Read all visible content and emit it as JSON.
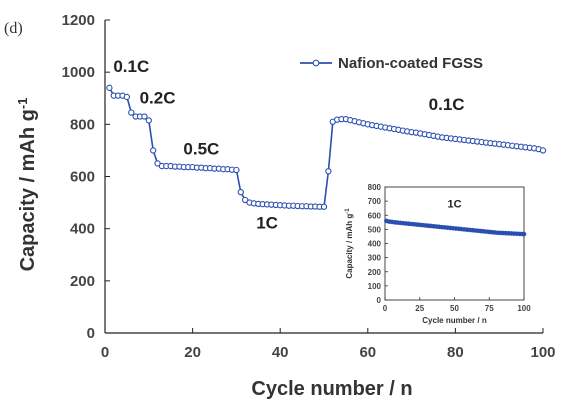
{
  "panel_label": "(d)",
  "chart_data": [
    {
      "type": "line",
      "xlabel": "Cycle number / n",
      "ylabel_main": "Capacity / mAh g",
      "ylabel_sup": "-1",
      "xlim": [
        0,
        100
      ],
      "ylim": [
        0,
        1200
      ],
      "xticks": [
        0,
        20,
        40,
        60,
        80,
        100
      ],
      "yticks": [
        0,
        200,
        400,
        600,
        800,
        1000,
        1200
      ],
      "grid": false,
      "legend_position": "top-right",
      "series": [
        {
          "name": "Nafion-coated FGSS",
          "color": "#2b4fb0",
          "x": [
            1,
            2,
            3,
            4,
            5,
            6,
            7,
            8,
            9,
            10,
            11,
            12,
            13,
            14,
            15,
            16,
            17,
            18,
            19,
            20,
            21,
            22,
            23,
            24,
            25,
            26,
            27,
            28,
            29,
            30,
            31,
            32,
            33,
            34,
            35,
            36,
            37,
            38,
            39,
            40,
            41,
            42,
            43,
            44,
            45,
            46,
            47,
            48,
            49,
            50,
            51,
            52,
            53,
            54,
            55,
            56,
            57,
            58,
            59,
            60,
            61,
            62,
            63,
            64,
            65,
            66,
            67,
            68,
            69,
            70,
            71,
            72,
            73,
            74,
            75,
            76,
            77,
            78,
            79,
            80,
            81,
            82,
            83,
            84,
            85,
            86,
            87,
            88,
            89,
            90,
            91,
            92,
            93,
            94,
            95,
            96,
            97,
            98,
            99,
            100
          ],
          "values": [
            940,
            910,
            910,
            910,
            905,
            845,
            830,
            830,
            830,
            815,
            700,
            650,
            640,
            640,
            640,
            638,
            638,
            636,
            636,
            636,
            634,
            634,
            632,
            632,
            630,
            630,
            628,
            628,
            626,
            625,
            540,
            510,
            500,
            497,
            495,
            494,
            493,
            492,
            491,
            490,
            489,
            488,
            488,
            487,
            486,
            486,
            485,
            485,
            484,
            484,
            620,
            810,
            818,
            820,
            820,
            816,
            812,
            808,
            804,
            800,
            797,
            794,
            791,
            788,
            785,
            782,
            779,
            776,
            773,
            770,
            768,
            765,
            762,
            759,
            756,
            753,
            750,
            748,
            746,
            744,
            742,
            740,
            738,
            736,
            734,
            732,
            730,
            728,
            726,
            724,
            722,
            720,
            718,
            716,
            714,
            712,
            710,
            708,
            705,
            700
          ]
        }
      ],
      "annotations": [
        {
          "text": "0.1C",
          "x": 6,
          "y": 1000
        },
        {
          "text": "0.2C",
          "x": 12,
          "y": 880
        },
        {
          "text": "0.5C",
          "x": 22,
          "y": 685
        },
        {
          "text": "1C",
          "x": 37,
          "y": 400
        },
        {
          "text": "0.1C",
          "x": 78,
          "y": 855
        }
      ]
    },
    {
      "type": "scatter",
      "ylabel_main": "Capacity / mAh g",
      "ylabel_sup": "-1",
      "xlabel": "Cycle number / n",
      "xlim": [
        0,
        100
      ],
      "ylim": [
        0,
        800
      ],
      "xticks": [
        0,
        25,
        50,
        75,
        100
      ],
      "yticks": [
        0,
        100,
        200,
        300,
        400,
        500,
        600,
        700,
        800
      ],
      "annotation": "1C",
      "series": [
        {
          "color": "#2b4fb0",
          "x": [
            1,
            3,
            5,
            7,
            9,
            11,
            13,
            15,
            17,
            19,
            21,
            23,
            25,
            27,
            29,
            31,
            33,
            35,
            37,
            39,
            41,
            43,
            45,
            47,
            49,
            51,
            53,
            55,
            57,
            59,
            61,
            63,
            65,
            67,
            69,
            71,
            73,
            75,
            77,
            79,
            81,
            83,
            85,
            87,
            89,
            91,
            93,
            95,
            97,
            99,
            100
          ],
          "values": [
            560,
            555,
            553,
            550,
            548,
            546,
            544,
            542,
            540,
            538,
            536,
            534,
            532,
            530,
            528,
            526,
            524,
            522,
            520,
            518,
            516,
            514,
            512,
            510,
            508,
            506,
            504,
            502,
            500,
            498,
            496,
            494,
            492,
            490,
            488,
            486,
            484,
            482,
            480,
            478,
            476,
            475,
            474,
            473,
            472,
            471,
            470,
            469,
            468,
            467,
            466
          ]
        }
      ]
    }
  ]
}
